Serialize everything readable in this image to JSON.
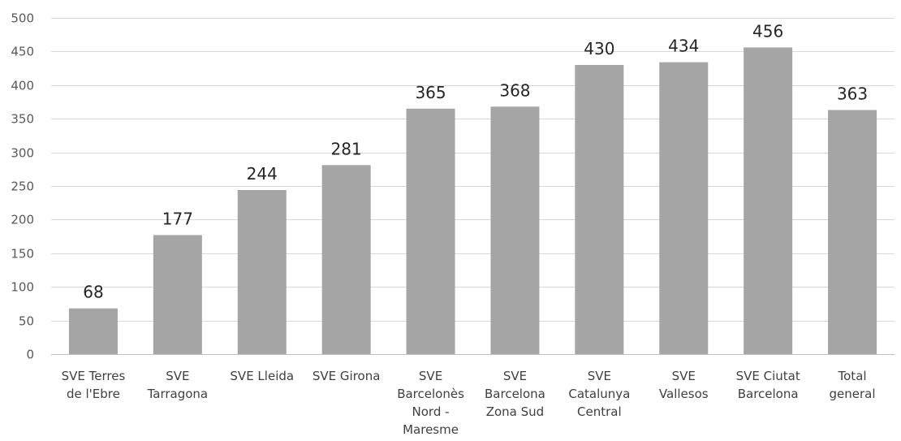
{
  "chart_data": {
    "type": "bar",
    "categories": [
      [
        "SVE Terres",
        "de l'Ebre"
      ],
      [
        "SVE",
        "Tarragona"
      ],
      [
        "SVE Lleida"
      ],
      [
        "SVE Girona"
      ],
      [
        "SVE",
        "Barcelonès",
        "Nord -",
        "Maresme"
      ],
      [
        "SVE",
        "Barcelona",
        "Zona Sud"
      ],
      [
        "SVE",
        "Catalunya",
        "Central"
      ],
      [
        "SVE",
        "Vallesos"
      ],
      [
        "SVE Ciutat",
        "Barcelona"
      ],
      [
        "Total",
        "general"
      ]
    ],
    "values": [
      68,
      177,
      244,
      281,
      365,
      368,
      430,
      434,
      456,
      363
    ],
    "data_labels": [
      "68",
      "177",
      "244",
      "281",
      "365",
      "368",
      "430",
      "434",
      "456",
      "363"
    ],
    "yticks": [
      "0",
      "50",
      "100",
      "150",
      "200",
      "250",
      "300",
      "350",
      "400",
      "450",
      "500"
    ],
    "ylim": [
      0,
      500
    ],
    "title": "",
    "xlabel": "",
    "ylabel": "",
    "grid": true,
    "legend": "none",
    "colors": {
      "bar": "#a5a5a5",
      "grid": "#d9d9d9",
      "axis": "#bfbfbf"
    }
  }
}
